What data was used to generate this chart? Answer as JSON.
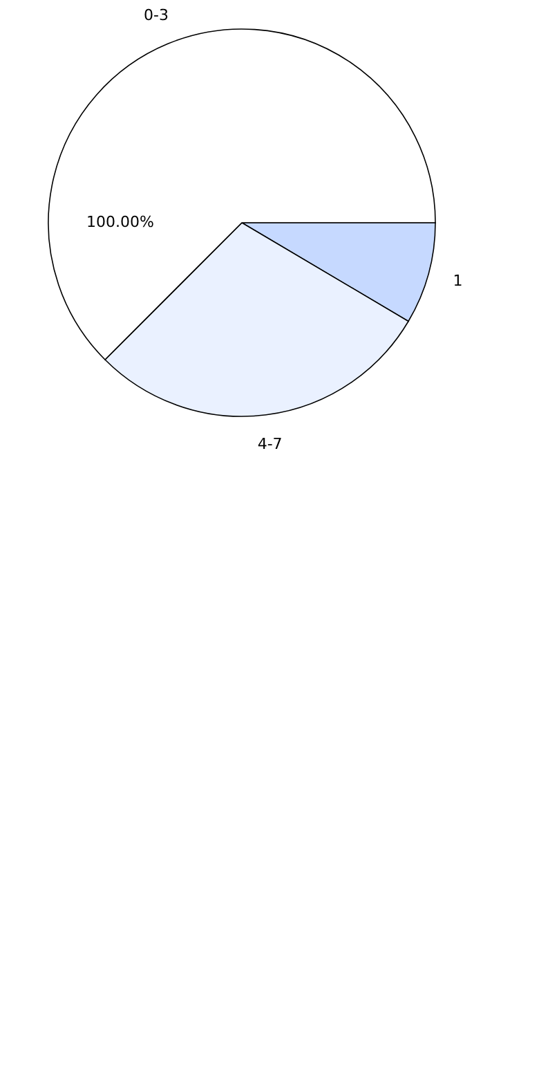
{
  "chart_data": {
    "type": "pie",
    "categories": [
      "1",
      "4-7",
      "0-3"
    ],
    "values": [
      8.5,
      29,
      62.5
    ],
    "colors": [
      "#c6d9ff",
      "#eaf1ff",
      "#ffffff"
    ],
    "annotations": [
      "100.00%"
    ],
    "legend": false
  }
}
